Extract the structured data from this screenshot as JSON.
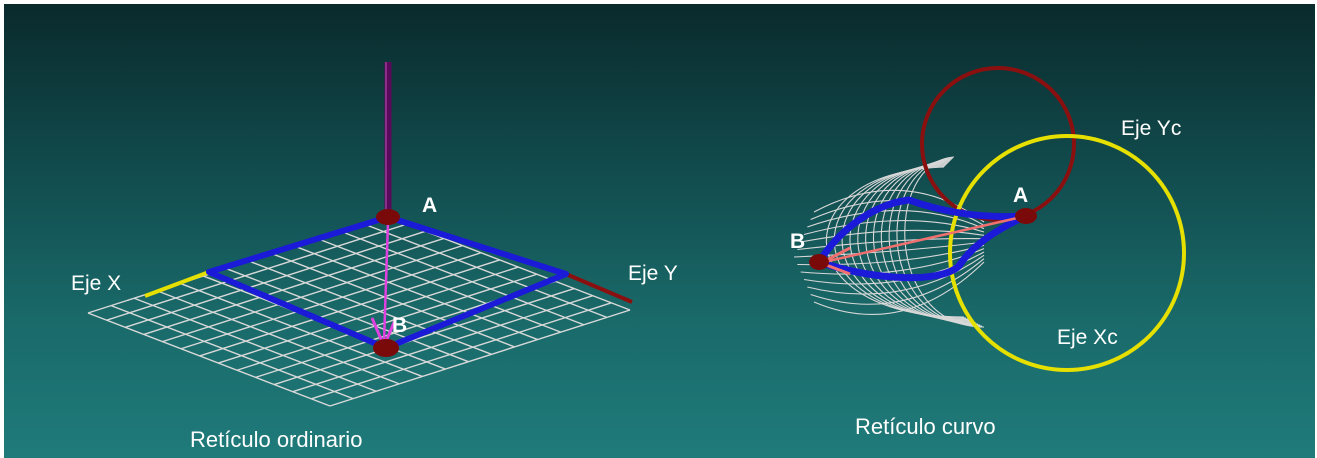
{
  "left_figure": {
    "caption": "Retículo ordinario",
    "axis_x_label": "Eje X",
    "axis_y_label": "Eje Y",
    "point_a_label": "A",
    "point_b_label": "B"
  },
  "right_figure": {
    "caption": "Retículo curvo",
    "axis_xc_label": "Eje Xc",
    "axis_yc_label": "Eje Yc",
    "point_a_label": "A",
    "point_b_label": "B"
  },
  "colors": {
    "background_top": "#0a2a2c",
    "background_bottom": "#1f7b7a",
    "grid": "#d8d8d8",
    "path": "#1a1ad8",
    "axis_x": "#e6e000",
    "axis_y": "#8a1010",
    "vector_vertical": "#5a0a5a",
    "vector_ab_left": "#e040e0",
    "vector_ab_right": "#f07070",
    "point": "#7a0a0a"
  }
}
